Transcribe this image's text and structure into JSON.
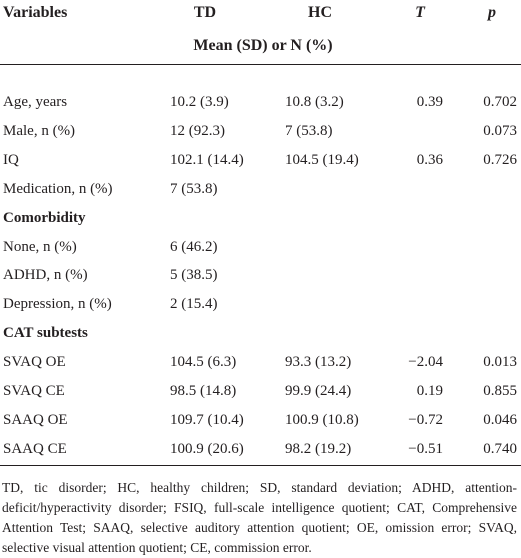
{
  "table": {
    "header": [
      "Variables",
      "TD",
      "HC",
      "T",
      "p"
    ],
    "subheader": "Mean (SD) or N (%)",
    "rows": [
      {
        "label": "Age, years",
        "values": [
          "10.2 (3.9)",
          "10.8 (3.2)",
          "0.39",
          "0.702"
        ]
      },
      {
        "label": "Male, n (%)",
        "values": [
          "12 (92.3)",
          "7 (53.8)",
          null,
          "0.073"
        ]
      },
      {
        "label": "IQ",
        "values": [
          "102.1 (14.4)",
          "104.5 (19.4)",
          "0.36",
          "0.726"
        ]
      },
      {
        "label": "Medication, n (%)",
        "values": [
          "7 (53.8)",
          null,
          null,
          null
        ]
      },
      {
        "heading": "Comorbidity"
      },
      {
        "label": "None, n (%)",
        "values": [
          "6 (46.2)",
          null,
          null,
          null
        ]
      },
      {
        "label": "ADHD, n (%)",
        "values": [
          "5 (38.5)",
          null,
          null,
          null
        ]
      },
      {
        "label": "Depression, n (%)",
        "values": [
          "2 (15.4)",
          null,
          null,
          null
        ]
      },
      {
        "heading": "CAT subtests"
      },
      {
        "label": "SVAQ OE",
        "values": [
          "104.5 (6.3)",
          "93.3 (13.2)",
          "−2.04",
          "0.013"
        ]
      },
      {
        "label": "SVAQ CE",
        "values": [
          "98.5 (14.8)",
          "99.9 (24.4)",
          "0.19",
          "0.855"
        ]
      },
      {
        "label": "SAAQ OE",
        "values": [
          "109.7 (10.4)",
          "100.9 (10.8)",
          "−0.72",
          "0.046"
        ]
      },
      {
        "label": "SAAQ CE",
        "values": [
          "100.9 (20.6)",
          "98.2 (19.2)",
          "−0.51",
          "0.740"
        ]
      }
    ]
  },
  "footnote": "TD, tic disorder; HC, healthy children; SD, standard deviation; ADHD, attention-deficit/hyperactivity disorder; FSIQ, full-scale intelligence quotient; CAT, Comprehensive Attention Test; SAAQ, selective auditory attention quotient; OE, omission error; SVAQ, selective visual attention quotient; CE, commission error."
}
